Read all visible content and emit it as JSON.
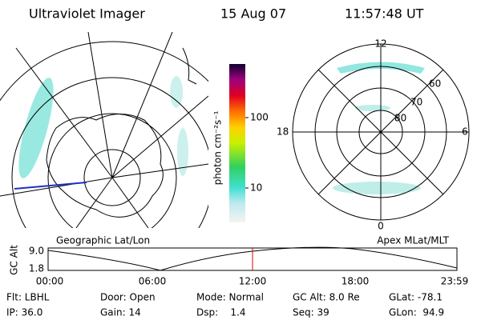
{
  "header": {
    "title": "Ultraviolet Imager",
    "date": "15 Aug 07",
    "time": "11:57:48 UT"
  },
  "colorbar": {
    "label": "photon cm⁻²s⁻¹",
    "ticks": [
      "100",
      "10"
    ]
  },
  "polar_plot": {
    "top": "12",
    "bottom": "0",
    "left": "18",
    "right": "6",
    "rings": [
      "60",
      "70",
      "80"
    ]
  },
  "altitude_plot": {
    "left_title": "Geographic Lat/Lon",
    "right_title": "Apex MLat/MLT",
    "y_label": "GC Alt",
    "y_ticks": [
      "9.0",
      "1.8"
    ],
    "x_ticks": [
      "00:00",
      "06:00",
      "12:00",
      "18:00",
      "23:59"
    ]
  },
  "status": {
    "rows": [
      [
        "Flt: LBHL",
        "Door: Open",
        "Mode: Normal",
        "GC Alt: 8.0 Re",
        "GLat: -78.1"
      ],
      [
        "IP: 36.0",
        "Gain: 14",
        "Dsp:    1.4",
        "Seq: 39",
        "GLon:  94.9"
      ]
    ]
  }
}
